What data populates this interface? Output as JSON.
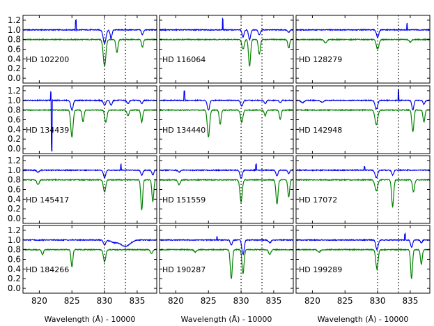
{
  "chart_data": {
    "type": "line",
    "layout": {
      "rows": 4,
      "cols": 3
    },
    "xlabel": "Wavelength (Å) - 10000",
    "xlim": [
      817.5,
      838.0
    ],
    "ylim": [
      -0.1,
      1.3
    ],
    "xticks": [
      820,
      825,
      830,
      835
    ],
    "yticks": [
      0.0,
      0.2,
      0.4,
      0.6,
      0.8,
      1.0,
      1.2
    ],
    "reference_lines_x": [
      830.0,
      833.2
    ],
    "series_names": [
      "blue",
      "green"
    ],
    "colors": {
      "blue": "#0000ee",
      "green": "#008000",
      "axes": "#000000"
    },
    "panels": [
      {
        "star": "HD 102200",
        "blue_cont": 1.0,
        "green_cont": 0.8,
        "blue_lines": [
          [
            830.0,
            0.28,
            0.3
          ],
          [
            831.0,
            0.18,
            0.2
          ],
          [
            835.8,
            0.1,
            0.2
          ]
        ],
        "green_lines": [
          [
            830.0,
            0.55,
            0.28
          ],
          [
            831.9,
            0.27,
            0.22
          ],
          [
            835.8,
            0.16,
            0.2
          ]
        ],
        "blue_spikes": [
          [
            825.6,
            0.2
          ]
        ]
      },
      {
        "star": "HD 116064",
        "blue_cont": 1.0,
        "green_cont": 0.8,
        "blue_lines": [
          [
            830.3,
            0.15,
            0.22
          ],
          [
            831.3,
            0.2,
            0.22
          ],
          [
            832.8,
            0.1,
            0.22
          ],
          [
            837.3,
            0.05,
            0.2
          ]
        ],
        "green_lines": [
          [
            830.3,
            0.2,
            0.25
          ],
          [
            831.3,
            0.55,
            0.22
          ],
          [
            832.8,
            0.3,
            0.22
          ],
          [
            837.3,
            0.18,
            0.2
          ]
        ],
        "blue_spikes": [
          [
            827.2,
            0.22
          ]
        ]
      },
      {
        "star": "HD 128279",
        "blue_cont": 1.0,
        "green_cont": 0.8,
        "blue_lines": [
          [
            830.0,
            0.15,
            0.25
          ]
        ],
        "green_lines": [
          [
            822.0,
            0.07,
            0.3
          ],
          [
            830.0,
            0.2,
            0.28
          ],
          [
            835.0,
            0.05,
            0.25
          ]
        ],
        "blue_spikes": [
          [
            834.5,
            0.13
          ]
        ]
      },
      {
        "star": "HD 134439",
        "blue_cont": 1.0,
        "green_cont": 0.8,
        "blue_lines": [
          [
            825.0,
            0.2,
            0.25
          ],
          [
            830.0,
            0.1,
            0.25
          ],
          [
            831.0,
            0.1,
            0.22
          ],
          [
            833.6,
            0.07,
            0.22
          ],
          [
            835.7,
            0.07,
            0.2
          ]
        ],
        "green_lines": [
          [
            825.0,
            0.55,
            0.25
          ],
          [
            826.7,
            0.25,
            0.2
          ],
          [
            830.2,
            0.25,
            0.25
          ],
          [
            833.6,
            0.12,
            0.22
          ],
          [
            835.7,
            0.25,
            0.2
          ]
        ],
        "blue_spikes": [
          [
            821.8,
            0.18
          ]
        ],
        "blue_dips": [
          [
            821.9,
            1.05
          ]
        ]
      },
      {
        "star": "HD 134440",
        "blue_cont": 1.0,
        "green_cont": 0.8,
        "blue_lines": [
          [
            825.0,
            0.2,
            0.25
          ],
          [
            830.1,
            0.12,
            0.25
          ],
          [
            833.7,
            0.07,
            0.22
          ],
          [
            836.0,
            0.05,
            0.2
          ]
        ],
        "green_lines": [
          [
            825.0,
            0.55,
            0.25
          ],
          [
            826.8,
            0.3,
            0.2
          ],
          [
            830.1,
            0.25,
            0.25
          ],
          [
            833.7,
            0.12,
            0.2
          ],
          [
            836.0,
            0.2,
            0.2
          ]
        ],
        "blue_spikes": [
          [
            821.3,
            0.2
          ]
        ]
      },
      {
        "star": "HD 142948",
        "blue_cont": 1.0,
        "green_cont": 0.8,
        "blue_lines": [
          [
            818.5,
            0.05,
            0.3
          ],
          [
            821.5,
            0.04,
            0.3
          ],
          [
            829.8,
            0.18,
            0.28
          ],
          [
            835.4,
            0.2,
            0.22
          ],
          [
            837.1,
            0.08,
            0.2
          ]
        ],
        "green_lines": [
          [
            829.8,
            0.3,
            0.3
          ],
          [
            835.4,
            0.45,
            0.22
          ],
          [
            837.1,
            0.25,
            0.2
          ]
        ],
        "blue_spikes": [
          [
            833.2,
            0.22
          ]
        ]
      },
      {
        "star": "HD 145417",
        "blue_cont": 1.0,
        "green_cont": 0.8,
        "blue_lines": [
          [
            819.8,
            0.04,
            0.25
          ],
          [
            830.0,
            0.15,
            0.25
          ],
          [
            835.7,
            0.1,
            0.22
          ],
          [
            837.4,
            0.1,
            0.2
          ]
        ],
        "green_lines": [
          [
            819.8,
            0.1,
            0.25
          ],
          [
            830.0,
            0.25,
            0.25
          ],
          [
            835.7,
            0.62,
            0.2
          ],
          [
            837.4,
            0.45,
            0.2
          ]
        ],
        "blue_spikes": [
          [
            832.5,
            0.12
          ]
        ]
      },
      {
        "star": "HD 151559",
        "blue_cont": 1.0,
        "green_cont": 0.8,
        "blue_lines": [
          [
            820.5,
            0.04,
            0.25
          ],
          [
            830.0,
            0.17,
            0.25
          ],
          [
            835.5,
            0.12,
            0.22
          ],
          [
            837.3,
            0.07,
            0.2
          ]
        ],
        "green_lines": [
          [
            820.5,
            0.1,
            0.25
          ],
          [
            830.0,
            0.45,
            0.25
          ],
          [
            835.5,
            0.5,
            0.22
          ],
          [
            837.3,
            0.35,
            0.2
          ]
        ],
        "blue_spikes": [
          [
            832.3,
            0.12
          ]
        ]
      },
      {
        "star": "HD 17072",
        "blue_cont": 1.0,
        "green_cont": 0.8,
        "blue_lines": [
          [
            829.8,
            0.15,
            0.28
          ],
          [
            832.3,
            0.1,
            0.22
          ]
        ],
        "green_lines": [
          [
            829.8,
            0.22,
            0.3
          ],
          [
            832.3,
            0.55,
            0.22
          ],
          [
            835.5,
            0.25,
            0.22
          ]
        ],
        "blue_spikes": [
          [
            828.0,
            0.07
          ]
        ]
      },
      {
        "star": "HD 184266",
        "blue_cont": 1.0,
        "green_cont": 0.8,
        "blue_lines": [
          [
            830.0,
            0.1,
            0.25
          ],
          [
            833.2,
            0.13,
            1.0
          ],
          [
            831.5,
            0.05,
            0.8
          ]
        ],
        "green_lines": [
          [
            820.5,
            0.1,
            0.2
          ],
          [
            825.0,
            0.35,
            0.2
          ],
          [
            830.0,
            0.25,
            0.25
          ],
          [
            837.2,
            0.08,
            0.25
          ]
        ],
        "blue_spikes": []
      },
      {
        "star": "HD 190287",
        "blue_cont": 1.0,
        "green_cont": 0.8,
        "blue_lines": [
          [
            828.5,
            0.1,
            0.22
          ],
          [
            830.3,
            0.3,
            0.25
          ],
          [
            834.4,
            0.06,
            0.25
          ]
        ],
        "green_lines": [
          [
            823.0,
            0.05,
            0.3
          ],
          [
            828.5,
            0.6,
            0.22
          ],
          [
            830.3,
            0.5,
            0.22
          ],
          [
            834.4,
            0.1,
            0.25
          ]
        ],
        "blue_spikes": [
          [
            826.3,
            0.07
          ]
        ]
      },
      {
        "star": "HD 199289",
        "blue_cont": 1.0,
        "green_cont": 0.8,
        "blue_lines": [
          [
            829.9,
            0.2,
            0.25
          ],
          [
            835.2,
            0.15,
            0.22
          ],
          [
            836.7,
            0.06,
            0.2
          ]
        ],
        "green_lines": [
          [
            821.0,
            0.05,
            0.3
          ],
          [
            829.9,
            0.4,
            0.25
          ],
          [
            835.2,
            0.6,
            0.2
          ],
          [
            836.7,
            0.3,
            0.2
          ]
        ],
        "blue_spikes": [
          [
            834.2,
            0.12
          ]
        ]
      }
    ]
  }
}
